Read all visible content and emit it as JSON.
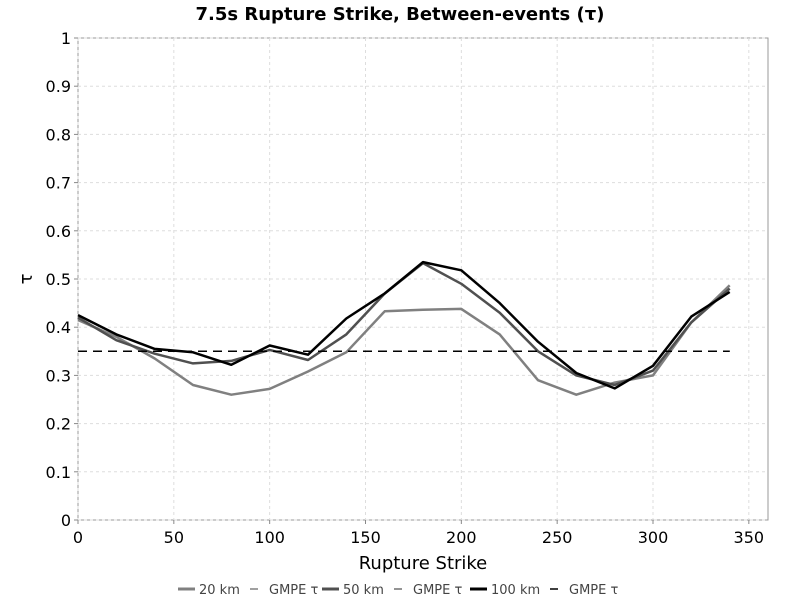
{
  "chart_data": {
    "type": "line",
    "title": "7.5s Rupture Strike, Between-events (τ)",
    "xlabel": "Rupture Strike",
    "ylabel": "τ",
    "xlim": [
      0,
      360
    ],
    "ylim": [
      0,
      1
    ],
    "xticks": [
      0,
      50,
      100,
      150,
      200,
      250,
      300,
      350
    ],
    "yticks": [
      0,
      0.1,
      0.2,
      0.3,
      0.4,
      0.5,
      0.6,
      0.7,
      0.8,
      0.9,
      1
    ],
    "grid": true,
    "legend_position": "bottom",
    "x": [
      0,
      20,
      40,
      60,
      80,
      100,
      120,
      140,
      160,
      180,
      200,
      220,
      240,
      260,
      280,
      300,
      320,
      340
    ],
    "series": [
      {
        "name": "20 km",
        "color": "#808080",
        "style": "solid",
        "values": [
          0.415,
          0.38,
          0.335,
          0.28,
          0.26,
          0.272,
          0.308,
          0.348,
          0.433,
          0.436,
          0.438,
          0.385,
          0.29,
          0.26,
          0.285,
          0.3,
          0.41,
          0.487
        ]
      },
      {
        "name": "GMPE τ",
        "color": "#808080",
        "style": "dashed",
        "values": [
          0.35,
          0.35,
          0.35,
          0.35,
          0.35,
          0.35,
          0.35,
          0.35,
          0.35,
          0.35,
          0.35,
          0.35,
          0.35,
          0.35,
          0.35,
          0.35,
          0.35,
          0.35
        ]
      },
      {
        "name": "50 km",
        "color": "#505050",
        "style": "solid",
        "values": [
          0.42,
          0.373,
          0.345,
          0.325,
          0.33,
          0.353,
          0.332,
          0.385,
          0.47,
          0.533,
          0.49,
          0.43,
          0.35,
          0.3,
          0.28,
          0.31,
          0.41,
          0.48
        ]
      },
      {
        "name": "GMPE τ",
        "color": "#707070",
        "style": "dashed",
        "values": [
          0.35,
          0.35,
          0.35,
          0.35,
          0.35,
          0.35,
          0.35,
          0.35,
          0.35,
          0.35,
          0.35,
          0.35,
          0.35,
          0.35,
          0.35,
          0.35,
          0.35,
          0.35
        ]
      },
      {
        "name": "100 km",
        "color": "#000000",
        "style": "solid",
        "values": [
          0.425,
          0.385,
          0.355,
          0.348,
          0.322,
          0.362,
          0.343,
          0.418,
          0.47,
          0.535,
          0.518,
          0.45,
          0.37,
          0.305,
          0.273,
          0.32,
          0.422,
          0.473
        ]
      },
      {
        "name": "GMPE τ",
        "color": "#000000",
        "style": "dashed",
        "values": [
          0.35,
          0.35,
          0.35,
          0.35,
          0.35,
          0.35,
          0.35,
          0.35,
          0.35,
          0.35,
          0.35,
          0.35,
          0.35,
          0.35,
          0.35,
          0.35,
          0.35,
          0.35
        ]
      }
    ]
  }
}
